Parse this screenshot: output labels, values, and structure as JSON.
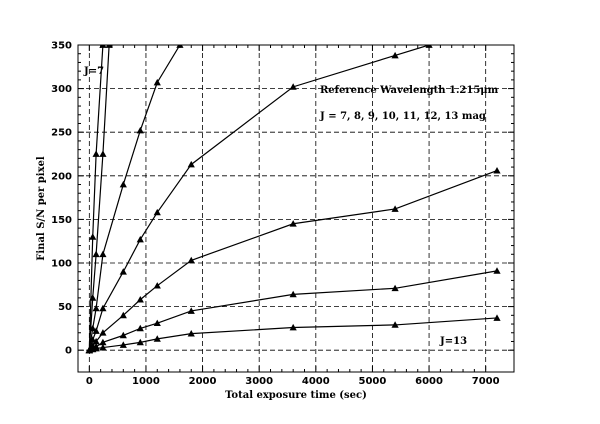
{
  "chart_data": {
    "type": "line",
    "title": "",
    "xlabel": "Total exposure time (sec)",
    "ylabel": "Final S/N per pixel",
    "xlim": [
      -200,
      7500
    ],
    "ylim": [
      -25,
      350
    ],
    "xticks": [
      0,
      1000,
      2000,
      3000,
      4000,
      5000,
      6000,
      7000
    ],
    "yticks": [
      0,
      50,
      100,
      150,
      200,
      250,
      300,
      350
    ],
    "grid": true,
    "annotations": {
      "ref_wavelength": "Reference Wavelength 1.215μm",
      "magnitudes": "J = 7, 8, 9, 10, 11, 12, 13 mag",
      "top_curve": "J=7",
      "bottom_curve": "J=13"
    },
    "series": [
      {
        "x": [
          0,
          60,
          120,
          240
        ],
        "y": [
          0,
          130,
          225,
          350
        ]
      },
      {
        "x": [
          0,
          60,
          120,
          240,
          350
        ],
        "y": [
          0,
          60,
          110,
          225,
          350
        ]
      },
      {
        "x": [
          0,
          60,
          120,
          240,
          600,
          900,
          1200,
          1600
        ],
        "y": [
          0,
          25,
          48,
          110,
          190,
          252,
          307,
          350
        ]
      },
      {
        "x": [
          0,
          60,
          120,
          240,
          600,
          900,
          1200,
          1800,
          3600,
          5400,
          6000
        ],
        "y": [
          0,
          12,
          22,
          48,
          90,
          127,
          158,
          213,
          302,
          338,
          350
        ]
      },
      {
        "x": [
          0,
          60,
          120,
          240,
          600,
          900,
          1200,
          1800,
          3600,
          5400,
          7200
        ],
        "y": [
          0,
          5,
          10,
          20,
          40,
          58,
          74,
          103,
          145,
          162,
          206
        ]
      },
      {
        "x": [
          0,
          60,
          120,
          240,
          600,
          900,
          1200,
          1800,
          3600,
          5400,
          7200
        ],
        "y": [
          0,
          2,
          4,
          9,
          17,
          25,
          31,
          45,
          64,
          71,
          91
        ]
      },
      {
        "x": [
          0,
          60,
          120,
          240,
          600,
          900,
          1200,
          1800,
          3600,
          5400,
          7200
        ],
        "y": [
          0,
          1,
          2,
          3,
          6,
          9,
          13,
          19,
          26,
          29,
          37
        ]
      }
    ]
  }
}
